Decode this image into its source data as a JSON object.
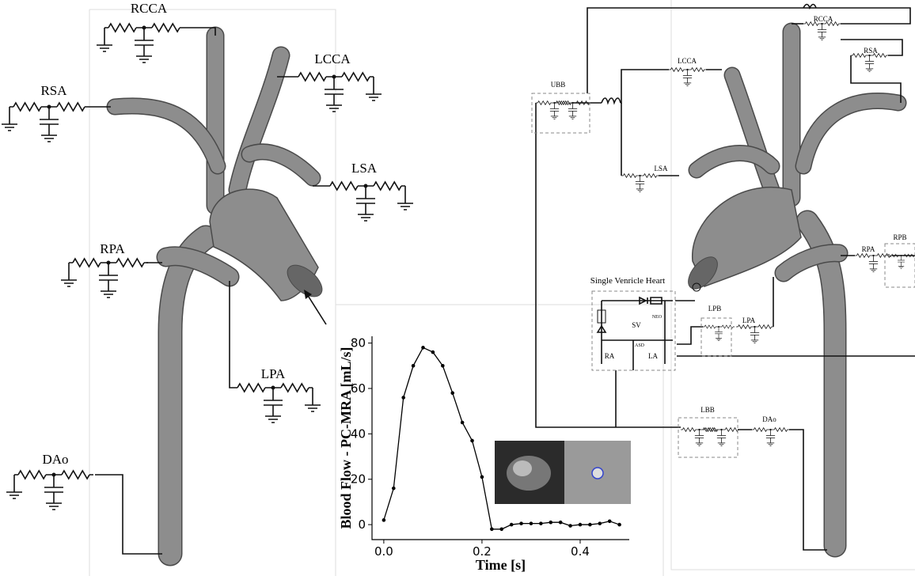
{
  "left_model": {
    "labels": [
      "RCCA",
      "LCCA",
      "RSA",
      "LSA",
      "RPA",
      "LPA",
      "DAo"
    ]
  },
  "right_model": {
    "labels": [
      "RCCA",
      "RSA",
      "LCCA",
      "UBB",
      "LSA",
      "RPA",
      "RPB",
      "LPB",
      "LPA",
      "LBB",
      "DAo"
    ],
    "heart": {
      "title": "Single Venricle Heart",
      "labels": [
        "SV",
        "NEO",
        "RA",
        "LA",
        "ASD"
      ]
    }
  },
  "chart_data": {
    "type": "line",
    "x_label": "Time [s]",
    "y_label": "Blood Flow - PC-MRA [mL/s]",
    "x": [
      0.0,
      0.02,
      0.04,
      0.06,
      0.08,
      0.1,
      0.12,
      0.14,
      0.16,
      0.18,
      0.2,
      0.22,
      0.24,
      0.26,
      0.28,
      0.3,
      0.32,
      0.34,
      0.36,
      0.38,
      0.4,
      0.42,
      0.44,
      0.46,
      0.48
    ],
    "series": [
      {
        "color": "#000000",
        "values": [
          2,
          16,
          56,
          70,
          78,
          76,
          70,
          58,
          45,
          37,
          21,
          -2,
          -2,
          0,
          0.5,
          0.5,
          0.5,
          1,
          1,
          -0.5,
          0,
          0,
          0.5,
          1.5,
          0
        ]
      }
    ],
    "xlim": [
      -0.024,
      0.5
    ],
    "ylim": [
      -6.6,
      83
    ],
    "xticks": [
      {
        "value": 0,
        "label": "0.0"
      },
      {
        "value": 0.2,
        "label": "0.2"
      },
      {
        "value": 0.4,
        "label": "0.4"
      }
    ],
    "yticks": [
      0,
      20,
      40,
      60,
      80
    ]
  }
}
